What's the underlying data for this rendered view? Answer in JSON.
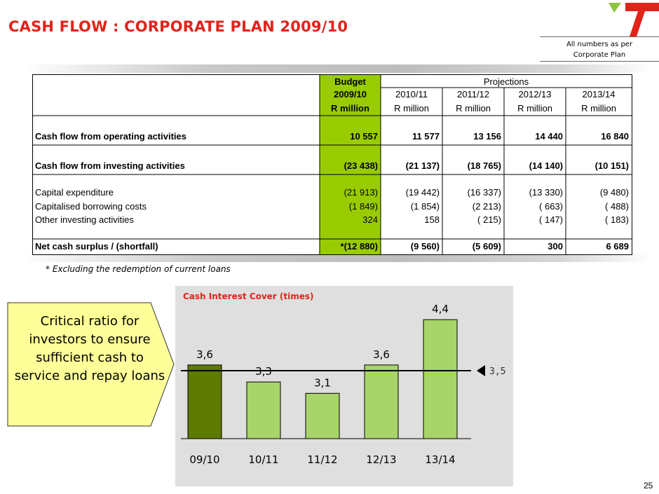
{
  "title": "CASH FLOW : CORPORATE PLAN 2009/10",
  "note": {
    "line1": "All numbers as per",
    "line2": "Corporate Plan"
  },
  "table": {
    "header": {
      "budget": [
        "Budget",
        "2009/10",
        "R million"
      ],
      "projections_label": "Projections",
      "years": [
        "2010/11",
        "2011/12",
        "2012/13",
        "2013/14"
      ],
      "unit": "R million"
    },
    "rows": [
      {
        "label": "Cash flow from operating activities",
        "bold": true,
        "values": [
          "10 557",
          "11 577",
          "13 156",
          "14 440",
          "16 840"
        ]
      },
      {
        "label": "Cash flow from investing activities",
        "bold": true,
        "values": [
          "(23 438)",
          "(21 137)",
          "(18 765)",
          "(14 140)",
          "(10 151)"
        ]
      },
      {
        "label": "Capital expenditure",
        "bold": false,
        "values": [
          "(21 913)",
          "(19 442)",
          "(16 337)",
          "(13 330)",
          "(9 480)"
        ]
      },
      {
        "label": "Capitalised borrowing costs",
        "bold": false,
        "values": [
          "(1 849)",
          "(1 854)",
          "(2 213)",
          "( 663)",
          "( 488)"
        ]
      },
      {
        "label": "Other investing activities",
        "bold": false,
        "values": [
          "324",
          "158",
          "( 215)",
          "( 147)",
          "( 183)"
        ]
      },
      {
        "label": "Net cash surplus / (shortfall)",
        "bold": true,
        "values": [
          "*(12 880)",
          "(9 560)",
          "(5 609)",
          "300",
          "6 689"
        ]
      }
    ]
  },
  "footnote": "* Excluding the redemption of current loans",
  "callout": "Critical ratio for investors to ensure sufficient cash to service and repay loans",
  "chart_data": {
    "type": "bar",
    "title": "Cash Interest Cover (times)",
    "categories": [
      "09/10",
      "10/11",
      "11/12",
      "12/13",
      "13/14"
    ],
    "values": [
      3.6,
      3.3,
      3.1,
      3.6,
      4.4
    ],
    "value_labels": [
      "3,6",
      "3,3",
      "3,1",
      "3,6",
      "4,4"
    ],
    "target": 3.5,
    "target_label": "3,5",
    "colors": {
      "highlight": "#5f7a00",
      "bar": "#a8d46a",
      "bar_stroke": "#000000"
    },
    "ylim": [
      2.3,
      4.6
    ]
  },
  "page_number": "25",
  "colors": {
    "title": "#e2231a",
    "budget_col": "#99cc00",
    "logo_green": "#8dc63f",
    "logo_red": "#e2231a"
  }
}
